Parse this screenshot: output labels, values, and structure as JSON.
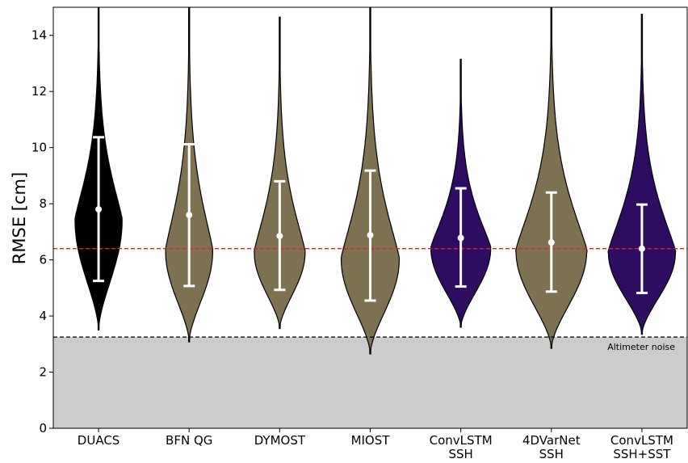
{
  "chart_data": {
    "type": "violin",
    "xlabel": "",
    "ylabel": "RMSE [cm]",
    "ylim": [
      0,
      15
    ],
    "yticks": [
      0,
      2,
      4,
      6,
      8,
      10,
      12,
      14
    ],
    "grid": false,
    "categories": [
      {
        "name": "DUACS",
        "lines": [
          "DUACS"
        ],
        "color": "#000000",
        "mean": 7.8,
        "lo": 5.25,
        "hi": 10.37,
        "min": 3.5,
        "max": 15.5,
        "mode": 7.4,
        "max_half_width": 0.26
      },
      {
        "name": "BFN QG",
        "lines": [
          "BFN QG"
        ],
        "color": "#7d7152",
        "mean": 7.6,
        "lo": 5.07,
        "hi": 10.12,
        "min": 3.08,
        "max": 15.5,
        "mode": 6.3,
        "max_half_width": 0.26
      },
      {
        "name": "DYMOST",
        "lines": [
          "DYMOST"
        ],
        "color": "#7d7152",
        "mean": 6.85,
        "lo": 4.93,
        "hi": 8.8,
        "min": 3.55,
        "max": 14.65,
        "mode": 6.25,
        "max_half_width": 0.28
      },
      {
        "name": "MIOST",
        "lines": [
          "MIOST"
        ],
        "color": "#7d7152",
        "mean": 6.88,
        "lo": 4.55,
        "hi": 9.18,
        "min": 2.65,
        "max": 15.5,
        "mode": 6.0,
        "max_half_width": 0.32
      },
      {
        "name": "ConvLSTM SSH",
        "lines": [
          "ConvLSTM",
          "SSH"
        ],
        "color": "#2e0c62",
        "mean": 6.78,
        "lo": 5.05,
        "hi": 8.55,
        "min": 3.6,
        "max": 13.15,
        "mode": 6.4,
        "max_half_width": 0.33
      },
      {
        "name": "4DVarNet SSH",
        "lines": [
          "4DVarNet",
          "SSH"
        ],
        "color": "#7d7152",
        "mean": 6.62,
        "lo": 4.87,
        "hi": 8.4,
        "min": 2.85,
        "max": 15.5,
        "mode": 6.3,
        "max_half_width": 0.39
      },
      {
        "name": "ConvLSTM SSH+SST",
        "lines": [
          "ConvLSTM",
          "SSH+SST"
        ],
        "color": "#2e0c62",
        "mean": 6.4,
        "lo": 4.82,
        "hi": 7.97,
        "min": 3.35,
        "max": 14.75,
        "mode": 6.25,
        "max_half_width": 0.37
      }
    ],
    "reference_lines": [
      {
        "y": 6.4,
        "color": "#d62728",
        "style": "dashed"
      },
      {
        "y": 3.25,
        "color": "#000000",
        "style": "dashed"
      }
    ],
    "noise_band": {
      "from": 0,
      "to": 3.25,
      "color": "#cccccc",
      "label": "Altimeter noise"
    }
  }
}
